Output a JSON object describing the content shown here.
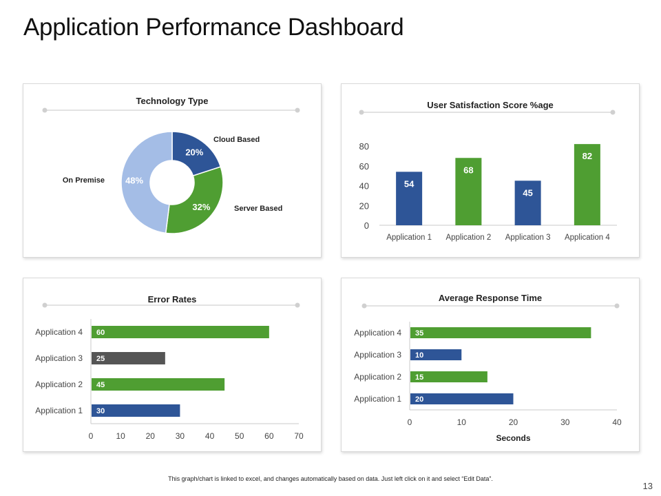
{
  "page": {
    "title": "Application Performance Dashboard",
    "footer_note": "This graph/chart is linked to excel, and changes automatically based on data. Just left click on it and select “Edit Data”.",
    "page_number": "13"
  },
  "colors": {
    "blue": "#2e5597",
    "green": "#4f9e32",
    "light_blue": "#a4bde6",
    "dark_gray": "#555555",
    "divider": "#d0d0d0",
    "axis": "#c8c8c8"
  },
  "chart_data": [
    {
      "id": "technology-type",
      "type": "pie",
      "title": "Technology Type",
      "slices": [
        {
          "label": "Cloud Based",
          "value": 20,
          "value_label": "20%",
          "color": "#2e5597"
        },
        {
          "label": "Server Based",
          "value": 32,
          "value_label": "32%",
          "color": "#4f9e32"
        },
        {
          "label": "On Premise",
          "value": 48,
          "value_label": "48%",
          "color": "#a4bde6"
        }
      ]
    },
    {
      "id": "user-satisfaction",
      "type": "bar",
      "title": "User Satisfaction Score %age",
      "categories": [
        "Application 1",
        "Application 2",
        "Application 3",
        "Application 4"
      ],
      "values": [
        54,
        68,
        45,
        82
      ],
      "colors": [
        "#2e5597",
        "#4f9e32",
        "#2e5597",
        "#4f9e32"
      ],
      "ylim": [
        0,
        80
      ],
      "yticks": [
        0,
        20,
        40,
        60,
        80
      ]
    },
    {
      "id": "error-rates",
      "type": "bar",
      "orientation": "horizontal",
      "title": "Error Rates",
      "categories": [
        "Application 1",
        "Application 2",
        "Application 3",
        "Application 4"
      ],
      "values": [
        30,
        45,
        25,
        60
      ],
      "colors": [
        "#2e5597",
        "#4f9e32",
        "#555555",
        "#4f9e32"
      ],
      "xlim": [
        0,
        70
      ],
      "xticks": [
        0,
        10,
        20,
        30,
        40,
        50,
        60,
        70
      ]
    },
    {
      "id": "average-response-time",
      "type": "bar",
      "orientation": "horizontal",
      "title": "Average Response Time",
      "xlabel": "Seconds",
      "categories": [
        "Application 1",
        "Application 2",
        "Application 3",
        "Application 4"
      ],
      "values": [
        20,
        15,
        10,
        35
      ],
      "colors": [
        "#2e5597",
        "#4f9e32",
        "#2e5597",
        "#4f9e32"
      ],
      "xlim": [
        0,
        40
      ],
      "xticks": [
        0,
        10,
        20,
        30,
        40
      ]
    }
  ]
}
